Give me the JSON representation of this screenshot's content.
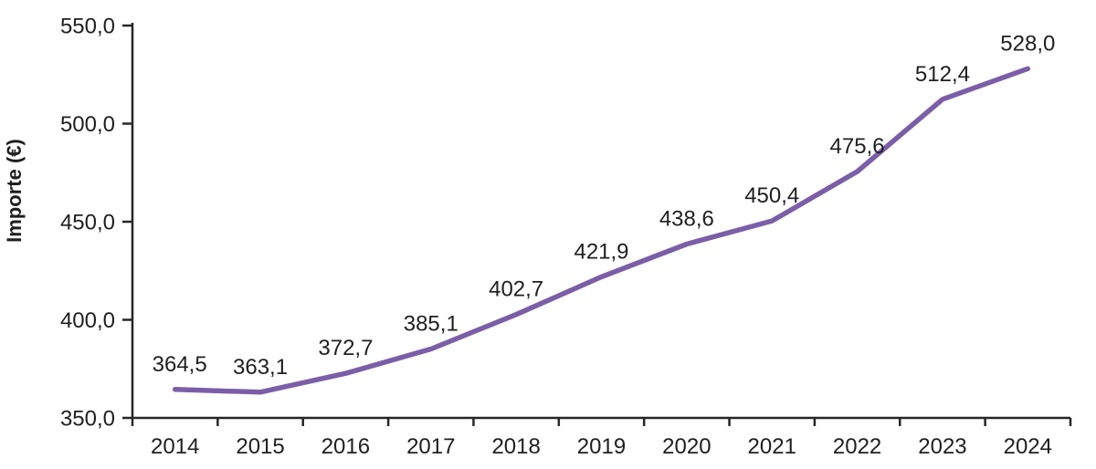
{
  "chart_data": {
    "type": "line",
    "title": "",
    "xlabel": "",
    "ylabel": "Importe (€)",
    "categories": [
      "2014",
      "2015",
      "2016",
      "2017",
      "2018",
      "2019",
      "2020",
      "2021",
      "2022",
      "2023",
      "2024"
    ],
    "series": [
      {
        "name": "Importe",
        "values": [
          364.5,
          363.1,
          372.7,
          385.1,
          402.7,
          421.9,
          438.6,
          450.4,
          475.6,
          512.4,
          528.0
        ],
        "value_labels": [
          "364,5",
          "363,1",
          "372,7",
          "385,1",
          "402,7",
          "421,9",
          "438,6",
          "450,4",
          "475,6",
          "512,4",
          "528,0"
        ]
      }
    ],
    "ylim": [
      350,
      550
    ],
    "yticks": [
      350,
      400,
      450,
      500,
      550
    ],
    "ytick_labels": [
      "350,0",
      "400,0",
      "450,0",
      "500,0",
      "550,0"
    ],
    "grid": "off",
    "legend": "none",
    "colors": {
      "line": "#7B5EA7",
      "axis": "#262626",
      "text": "#1f1f1f"
    }
  }
}
